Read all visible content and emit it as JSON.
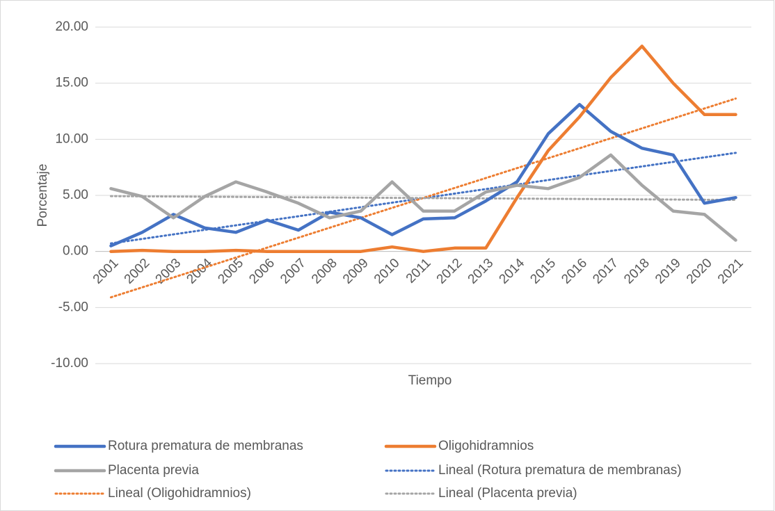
{
  "chart_data": {
    "type": "line",
    "x_label": "Tiempo",
    "y_label": "Porcentaje",
    "categories": [
      "2001",
      "2002",
      "2003",
      "2004",
      "2005",
      "2006",
      "2007",
      "2008",
      "2009",
      "2010",
      "2011",
      "2012",
      "2013",
      "2014",
      "2015",
      "2016",
      "2017",
      "2018",
      "2019",
      "2020",
      "2021"
    ],
    "series": [
      {
        "name": "Rotura prematura de membranas",
        "color": "#4472c4",
        "values": [
          0.5,
          1.7,
          3.3,
          2.1,
          1.7,
          2.8,
          1.9,
          3.5,
          3.0,
          1.5,
          2.9,
          3.0,
          4.5,
          6.2,
          10.5,
          13.1,
          10.7,
          9.2,
          8.6,
          4.3,
          4.8
        ]
      },
      {
        "name": "Oligohidramnios",
        "color": "#ed7d31",
        "values": [
          0,
          0.1,
          0,
          0,
          0.1,
          0,
          0,
          0,
          0,
          0.4,
          0,
          0.3,
          0.3,
          4.8,
          9.0,
          12.0,
          15.5,
          18.3,
          15.0,
          12.2,
          12.2
        ]
      },
      {
        "name": "Placenta previa",
        "color": "#a5a5a5",
        "values": [
          5.6,
          4.9,
          3.0,
          4.9,
          6.2,
          5.3,
          4.3,
          3.0,
          3.6,
          6.2,
          3.6,
          3.6,
          5.3,
          5.9,
          5.6,
          6.6,
          8.6,
          5.9,
          3.6,
          3.3,
          1.0
        ]
      }
    ],
    "trendlines": [
      {
        "name": "Lineal (Rotura prematura de membranas)",
        "color": "#4472c4",
        "source": 0
      },
      {
        "name": "Lineal (Oligohidramnios)",
        "color": "#ed7d31",
        "source": 1
      },
      {
        "name": "Lineal (Placenta previa)",
        "color": "#a5a5a5",
        "source": 2
      }
    ],
    "ylim": [
      -10,
      20
    ],
    "yticks": [
      {
        "value": -10,
        "label": "-10.00"
      },
      {
        "value": -5,
        "label": "-5.00"
      },
      {
        "value": 0,
        "label": "0.00"
      },
      {
        "value": 5,
        "label": "5.00"
      },
      {
        "value": 10,
        "label": "10.00"
      },
      {
        "value": 15,
        "label": "15.00"
      },
      {
        "value": 20,
        "label": "20.00"
      }
    ],
    "grid": true,
    "legend": "bottom"
  }
}
